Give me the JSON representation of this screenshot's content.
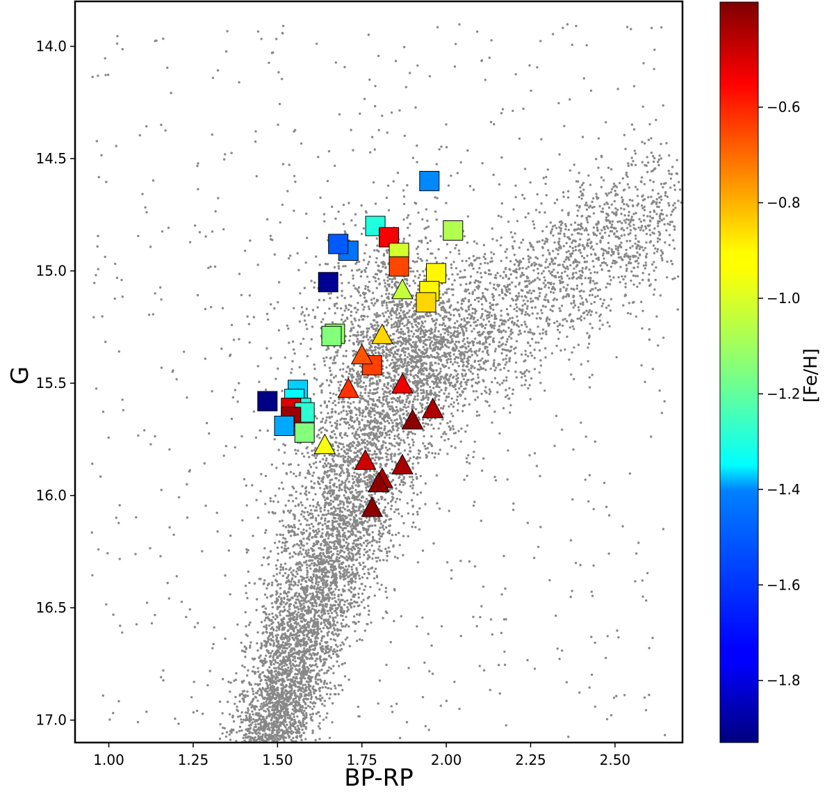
{
  "chart_data": {
    "type": "scatter",
    "title": "",
    "xlabel": "BP-RP",
    "ylabel": "G",
    "xlim": [
      0.9,
      2.7
    ],
    "ylim": [
      17.1,
      13.8
    ],
    "y_inverted": true,
    "grid": false,
    "x_ticks": [
      "1.00",
      "1.25",
      "1.50",
      "1.75",
      "2.00",
      "2.25",
      "2.50"
    ],
    "x_tick_values": [
      1.0,
      1.25,
      1.5,
      1.75,
      2.0,
      2.25,
      2.5
    ],
    "y_ticks": [
      "14.0",
      "14.5",
      "15.0",
      "15.5",
      "16.0",
      "16.5",
      "17.0"
    ],
    "y_tick_values": [
      14.0,
      14.5,
      15.0,
      15.5,
      16.0,
      16.5,
      17.0
    ],
    "background_series": {
      "name": "field stars",
      "color": "#888888",
      "marker": "dot",
      "description": "cluster/field CMD dense sequence: main sequence from (1.45,17.1) rising to turnoff and red giant branch toward (2.6,14.9)"
    },
    "colorbar": {
      "label": "[Fe/H]",
      "range": [
        -1.93,
        -0.38
      ],
      "colormap": "jet",
      "ticks": [
        "−0.6",
        "−0.8",
        "−1.0",
        "−1.2",
        "−1.4",
        "−1.6",
        "−1.8"
      ],
      "tick_values": [
        -0.6,
        -0.8,
        -1.0,
        -1.2,
        -1.4,
        -1.6,
        -1.8
      ]
    },
    "series": [
      {
        "name": "squares",
        "marker": "square",
        "points": [
          {
            "x": 1.95,
            "y": 14.6,
            "feh": -1.53
          },
          {
            "x": 1.79,
            "y": 14.8,
            "feh": -1.3
          },
          {
            "x": 2.02,
            "y": 14.82,
            "feh": -1.08
          },
          {
            "x": 1.83,
            "y": 14.85,
            "feh": -0.56
          },
          {
            "x": 1.71,
            "y": 14.91,
            "feh": -1.56
          },
          {
            "x": 1.68,
            "y": 14.88,
            "feh": -1.6
          },
          {
            "x": 1.86,
            "y": 14.92,
            "feh": -1.03
          },
          {
            "x": 1.86,
            "y": 14.98,
            "feh": -0.68
          },
          {
            "x": 1.97,
            "y": 15.01,
            "feh": -0.95
          },
          {
            "x": 1.65,
            "y": 15.05,
            "feh": -1.9
          },
          {
            "x": 1.95,
            "y": 15.09,
            "feh": -0.95
          },
          {
            "x": 1.94,
            "y": 15.14,
            "feh": -0.9
          },
          {
            "x": 1.67,
            "y": 15.28,
            "feh": -1.12
          },
          {
            "x": 1.66,
            "y": 15.29,
            "feh": -1.15
          },
          {
            "x": 1.78,
            "y": 15.42,
            "feh": -0.67
          },
          {
            "x": 1.56,
            "y": 15.53,
            "feh": -1.42
          },
          {
            "x": 1.55,
            "y": 15.57,
            "feh": -1.35
          },
          {
            "x": 1.57,
            "y": 15.61,
            "feh": -1.3
          },
          {
            "x": 1.47,
            "y": 15.58,
            "feh": -1.92
          },
          {
            "x": 1.54,
            "y": 15.61,
            "feh": -0.52
          },
          {
            "x": 1.58,
            "y": 15.63,
            "feh": -1.28
          },
          {
            "x": 1.54,
            "y": 15.65,
            "feh": -0.42
          },
          {
            "x": 1.52,
            "y": 15.69,
            "feh": -1.48
          },
          {
            "x": 1.58,
            "y": 15.72,
            "feh": -1.15
          }
        ]
      },
      {
        "name": "triangles",
        "marker": "triangle",
        "points": [
          {
            "x": 1.87,
            "y": 15.09,
            "feh": -1.05
          },
          {
            "x": 1.81,
            "y": 15.29,
            "feh": -0.9
          },
          {
            "x": 1.75,
            "y": 15.38,
            "feh": -0.7
          },
          {
            "x": 1.71,
            "y": 15.53,
            "feh": -0.65
          },
          {
            "x": 1.87,
            "y": 15.51,
            "feh": -0.55
          },
          {
            "x": 1.96,
            "y": 15.62,
            "feh": -0.45
          },
          {
            "x": 1.9,
            "y": 15.67,
            "feh": -0.4
          },
          {
            "x": 1.64,
            "y": 15.78,
            "feh": -0.98
          },
          {
            "x": 1.76,
            "y": 15.85,
            "feh": -0.5
          },
          {
            "x": 1.87,
            "y": 15.87,
            "feh": -0.44
          },
          {
            "x": 1.81,
            "y": 15.93,
            "feh": -0.45
          },
          {
            "x": 1.8,
            "y": 15.95,
            "feh": -0.4
          },
          {
            "x": 1.78,
            "y": 16.06,
            "feh": -0.4
          }
        ]
      }
    ]
  }
}
